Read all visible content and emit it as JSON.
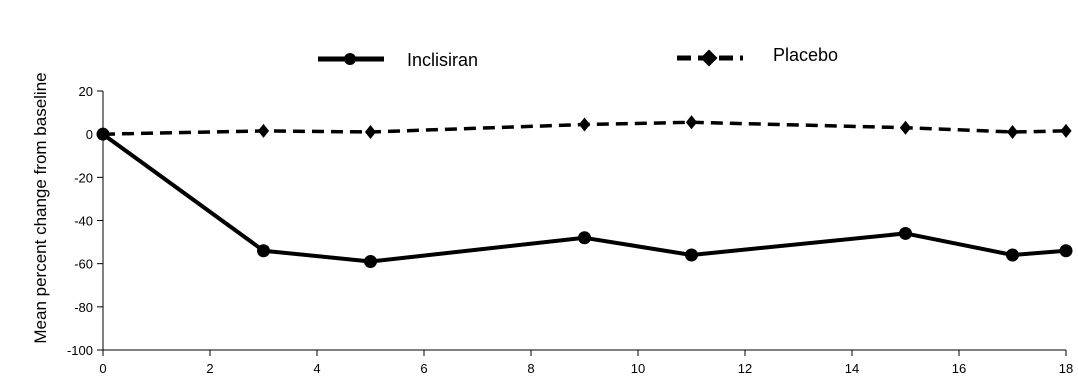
{
  "chart_data": {
    "type": "line",
    "title": "",
    "xlabel": "",
    "ylabel": "Mean percent change from baseline",
    "xlim": [
      0,
      18
    ],
    "ylim": [
      -100,
      20
    ],
    "xticks": [
      0,
      2,
      4,
      6,
      8,
      10,
      12,
      14,
      16,
      18
    ],
    "yticks": [
      20,
      0,
      -20,
      -40,
      -60,
      -80,
      -100
    ],
    "grid": false,
    "legend_position": "top",
    "series": [
      {
        "name": "Inclisiran",
        "line_style": "solid",
        "marker": "circle",
        "color": "#000000",
        "x": [
          0,
          3,
          5,
          9,
          11,
          15,
          17,
          18
        ],
        "y": [
          0,
          -54,
          -59,
          -48,
          -56,
          -46,
          -56,
          -54
        ]
      },
      {
        "name": "Placebo",
        "line_style": "dashed",
        "marker": "diamond",
        "color": "#000000",
        "x": [
          0,
          3,
          5,
          9,
          11,
          15,
          17,
          18
        ],
        "y": [
          0,
          1.5,
          1,
          4.5,
          5.5,
          3,
          1,
          1.5
        ]
      }
    ]
  }
}
